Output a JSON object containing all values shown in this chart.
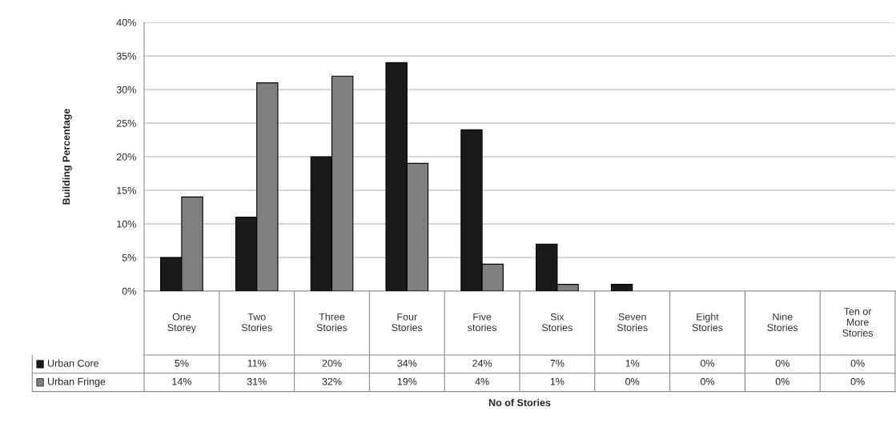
{
  "chart_data": {
    "type": "bar",
    "categories": [
      "One\nStorey",
      "Two\nStories",
      "Three\nStories",
      "Four\nStories",
      "Five\nstories",
      "Six\nStories",
      "Seven\nStories",
      "Eight\nStories",
      "Nine\nStories",
      "Ten or\nMore\nStories"
    ],
    "series": [
      {
        "name": "Urban Core",
        "color": "#1a1a1a",
        "values": [
          5,
          11,
          20,
          34,
          24,
          7,
          1,
          0,
          0,
          0
        ],
        "value_labels": [
          "5%",
          "11%",
          "20%",
          "34%",
          "24%",
          "7%",
          "1%",
          "0%",
          "0%",
          "0%"
        ]
      },
      {
        "name": "Urban Fringe",
        "color": "#7f7f7f",
        "values": [
          14,
          31,
          32,
          19,
          4,
          1,
          0,
          0,
          0,
          0
        ],
        "value_labels": [
          "14%",
          "31%",
          "32%",
          "19%",
          "4%",
          "1%",
          "0%",
          "0%",
          "0%",
          "0%"
        ]
      }
    ],
    "legend": "bottom left",
    "ylim": [
      0,
      40
    ],
    "yticks": [
      {
        "value": 0,
        "label": "0%"
      },
      {
        "value": 5,
        "label": "5%"
      },
      {
        "value": 10,
        "label": "10%"
      },
      {
        "value": 15,
        "label": "15%"
      },
      {
        "value": 20,
        "label": "20%"
      },
      {
        "value": 25,
        "label": "25%"
      },
      {
        "value": 30,
        "label": "30%"
      },
      {
        "value": 35,
        "label": "35%"
      },
      {
        "value": 40,
        "label": "40%"
      }
    ],
    "ylabel": "Building Percentage",
    "annotations": [
      "No of Stories"
    ],
    "grid": "y"
  }
}
